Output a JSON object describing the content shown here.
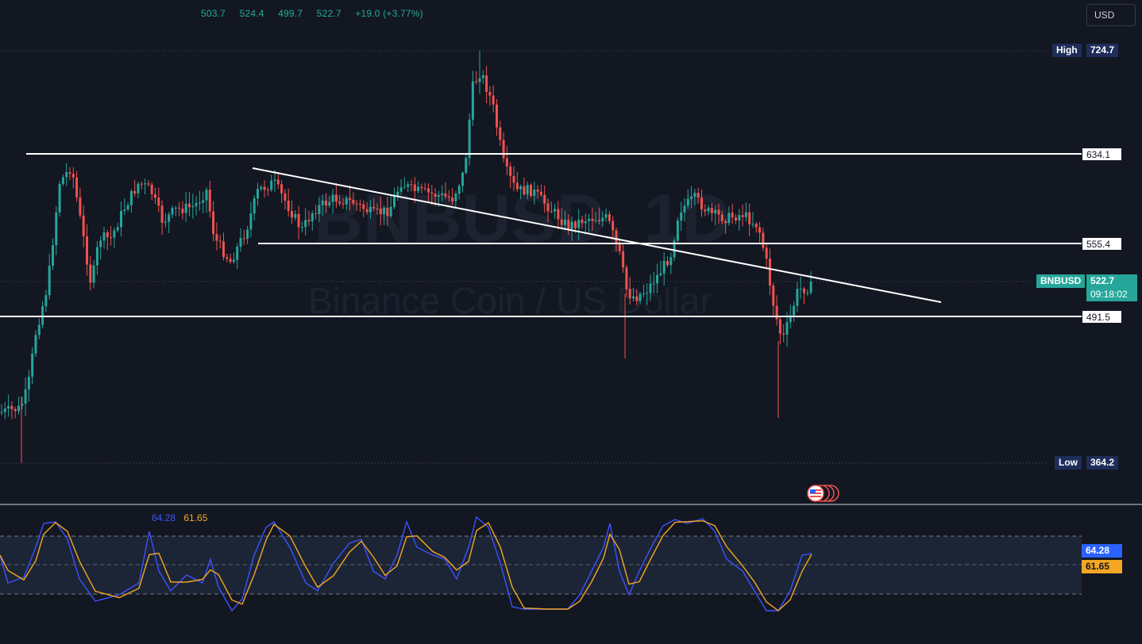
{
  "header": {
    "ohlc": {
      "open": "503.7",
      "high": "524.4",
      "low": "499.7",
      "close": "522.7",
      "change": "+19.0 (+3.77%)"
    },
    "currency_button": "USD"
  },
  "watermark": {
    "symbol": "BNBUSD, 1D",
    "name": "Binance Coin / US Dollar"
  },
  "price_scale": {
    "high_label": "High",
    "high_value": "724.7",
    "low_label": "Low",
    "low_value": "364.2",
    "levels": [
      "634.1",
      "555.4",
      "491.5"
    ],
    "symbol": "BNBUSD",
    "last_price": "522.7",
    "countdown": "09:18:02"
  },
  "rsi": {
    "k_value": "64.28",
    "d_value": "61.65",
    "k_color": "#3f51ff",
    "d_color": "#f5a623"
  },
  "colors": {
    "background": "#131722",
    "up": "#26a69a",
    "down": "#ef5350",
    "drawing": "#ffffff"
  },
  "event_icon": "us-flag-icon"
}
